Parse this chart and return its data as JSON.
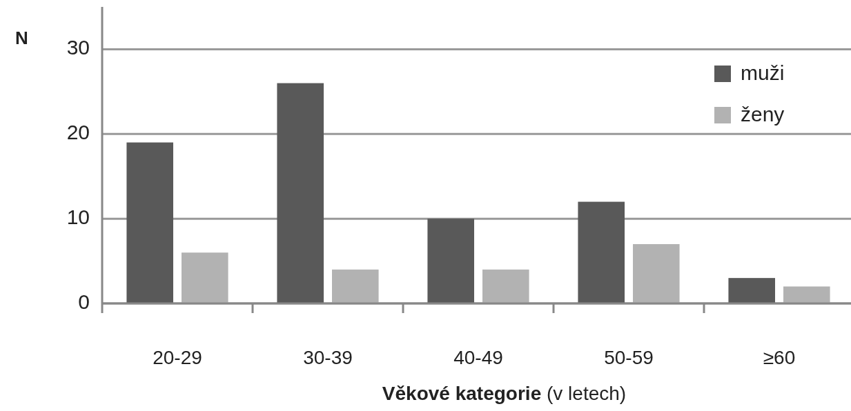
{
  "chart_data": {
    "type": "bar",
    "ylabel": "N",
    "xlabel": "Věkové kategorie (v letech)",
    "categories": [
      "20-29",
      "30-39",
      "40-49",
      "50-59",
      "≥60"
    ],
    "series": [
      {
        "name": "muži",
        "color": "#595959",
        "values": [
          19,
          26,
          10,
          12,
          3
        ]
      },
      {
        "name": "ženy",
        "color": "#b2b2b2",
        "values": [
          6,
          4,
          4,
          7,
          2
        ]
      }
    ],
    "ylim": [
      0,
      35
    ],
    "yticks": [
      0,
      10,
      20,
      30
    ],
    "grid": "y",
    "legend": "top right"
  }
}
